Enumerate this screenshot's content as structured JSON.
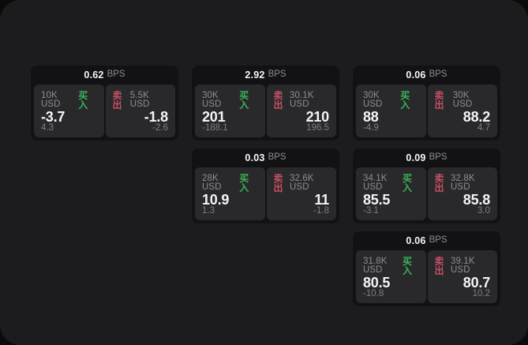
{
  "window": {
    "background": "#0a0a0a",
    "surface_color": "#1c1c1e",
    "card_color": "#121214",
    "panel_color": "#29292b"
  },
  "colors": {
    "buy_green": "#3ab35a",
    "sell_red": "#c74f63",
    "text_primary": "#f5f5f7",
    "text_muted": "#8e8e93",
    "text_dim": "#7f7f85"
  },
  "labels": {
    "bps": "BPS",
    "buy": "买入",
    "sell": "卖出"
  },
  "cards": [
    {
      "bps": "0.62",
      "grid": {
        "row": 1,
        "col": 1
      },
      "buy": {
        "size": "10K USD",
        "value": "-3.7",
        "delta": "4.3"
      },
      "sell": {
        "size": "5.5K USD",
        "value": "-1.8",
        "delta": "-2.6"
      }
    },
    {
      "bps": "2.92",
      "grid": {
        "row": 1,
        "col": 2
      },
      "buy": {
        "size": "30K USD",
        "value": "201",
        "delta": "-188.1"
      },
      "sell": {
        "size": "30.1K USD",
        "value": "210",
        "delta": "196.5"
      }
    },
    {
      "bps": "0.06",
      "grid": {
        "row": 1,
        "col": 3
      },
      "buy": {
        "size": "30K USD",
        "value": "88",
        "delta": "-4.9"
      },
      "sell": {
        "size": "30K USD",
        "value": "88.2",
        "delta": "4.7"
      }
    },
    {
      "bps": "0.03",
      "grid": {
        "row": 2,
        "col": 2
      },
      "buy": {
        "size": "28K USD",
        "value": "10.9",
        "delta": "1.3"
      },
      "sell": {
        "size": "32.6K USD",
        "value": "11",
        "delta": "-1.8"
      }
    },
    {
      "bps": "0.09",
      "grid": {
        "row": 2,
        "col": 3
      },
      "buy": {
        "size": "34.1K USD",
        "value": "85.5",
        "delta": "-3.1"
      },
      "sell": {
        "size": "32.8K USD",
        "value": "85.8",
        "delta": "3.0"
      }
    },
    {
      "bps": "0.06",
      "grid": {
        "row": 3,
        "col": 3
      },
      "buy": {
        "size": "31.8K USD",
        "value": "80.5",
        "delta": "-10.8"
      },
      "sell": {
        "size": "39.1K USD",
        "value": "80.7",
        "delta": "10.2"
      }
    }
  ]
}
